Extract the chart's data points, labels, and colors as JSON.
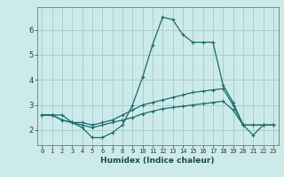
{
  "xlabel": "Humidex (Indice chaleur)",
  "bg_color": "#cceaea",
  "grid_color": "#aacece",
  "line_color": "#1a6b6b",
  "x": [
    0,
    1,
    2,
    3,
    4,
    5,
    6,
    7,
    8,
    9,
    10,
    11,
    12,
    13,
    14,
    15,
    16,
    17,
    18,
    19,
    20,
    21,
    22,
    23
  ],
  "line1": [
    2.6,
    2.6,
    2.6,
    2.3,
    2.1,
    1.7,
    1.7,
    1.9,
    2.2,
    3.0,
    4.1,
    5.4,
    6.5,
    6.4,
    5.8,
    5.5,
    5.5,
    5.5,
    3.8,
    3.1,
    2.2,
    1.8,
    2.2,
    2.2
  ],
  "line2": [
    2.6,
    2.6,
    2.4,
    2.3,
    2.3,
    2.2,
    2.3,
    2.4,
    2.6,
    2.8,
    3.0,
    3.1,
    3.2,
    3.3,
    3.4,
    3.5,
    3.55,
    3.6,
    3.65,
    3.0,
    2.2,
    2.2,
    2.2,
    2.2
  ],
  "line3": [
    2.6,
    2.6,
    2.4,
    2.3,
    2.2,
    2.1,
    2.2,
    2.3,
    2.4,
    2.5,
    2.65,
    2.75,
    2.85,
    2.9,
    2.95,
    3.0,
    3.05,
    3.1,
    3.15,
    2.8,
    2.2,
    2.2,
    2.2,
    2.2
  ],
  "ylim": [
    1.4,
    6.9
  ],
  "xlim": [
    -0.5,
    23.5
  ],
  "yticks": [
    2,
    3,
    4,
    5,
    6
  ],
  "xticks": [
    0,
    1,
    2,
    3,
    4,
    5,
    6,
    7,
    8,
    9,
    10,
    11,
    12,
    13,
    14,
    15,
    16,
    17,
    18,
    19,
    20,
    21,
    22,
    23
  ],
  "tick_fontsize": 5.0,
  "xlabel_fontsize": 6.5,
  "ytick_fontsize": 6.0
}
